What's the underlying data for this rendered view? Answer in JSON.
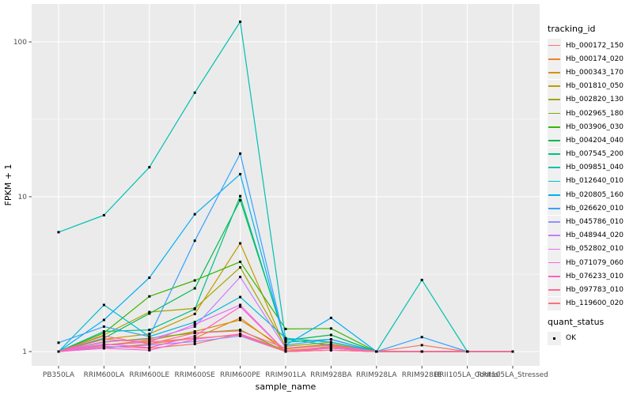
{
  "figure": {
    "y_axis_title": "FPKM + 1",
    "x_axis_title": "sample_name"
  },
  "legend": {
    "tracking_title": "tracking_id",
    "quant_title": "quant_status",
    "quant_ok_label": "OK",
    "quant_marker": "black-square"
  },
  "chart_data": {
    "type": "line",
    "title": "",
    "xlabel": "sample_name",
    "ylabel": "FPKM + 1",
    "y_scale": "log10",
    "ylim": [
      0.93,
      176
    ],
    "y_ticks": [
      1,
      10,
      100
    ],
    "y_minor_ticks": [
      3.1623,
      31.623
    ],
    "grid": "on",
    "legend_position": "right",
    "panel_bg": "#EBEBEB",
    "grid_color": "#FFFFFF",
    "point_marker": "black-square",
    "point_color": "#000000",
    "categories": [
      "PB350LA",
      "RRIM600LA",
      "RRIM600LE",
      "RRIM600SE",
      "RRIM600PE",
      "RRIM901LA",
      "RRIM928BA",
      "RRIM928LA",
      "RRIM928LE",
      "RRII105LA_Control",
      "RRII105LA_Stressed"
    ],
    "series": [
      {
        "name": "Hb_000172_150",
        "color": "#F8766D",
        "values": [
          1.0,
          1.08,
          1.05,
          1.12,
          1.3,
          1.02,
          1.06,
          1.0,
          1.1,
          1.0,
          1.0
        ]
      },
      {
        "name": "Hb_000174_020",
        "color": "#EA8331",
        "values": [
          1.0,
          1.05,
          1.12,
          1.22,
          1.65,
          1.0,
          1.08,
          1.0,
          1.0,
          1.0,
          1.0
        ]
      },
      {
        "name": "Hb_000343_170",
        "color": "#D89000",
        "values": [
          1.0,
          1.1,
          1.18,
          1.35,
          1.6,
          1.04,
          1.1,
          1.0,
          1.0,
          1.0,
          1.0
        ]
      },
      {
        "name": "Hb_001810_050",
        "color": "#C09B00",
        "values": [
          1.0,
          1.2,
          1.3,
          1.75,
          5.0,
          1.05,
          1.12,
          1.0,
          1.0,
          1.0,
          1.0
        ]
      },
      {
        "name": "Hb_002820_130",
        "color": "#A3A500",
        "values": [
          1.0,
          1.28,
          1.8,
          1.9,
          3.5,
          1.08,
          1.15,
          1.0,
          1.0,
          1.0,
          1.0
        ]
      },
      {
        "name": "Hb_002965_180",
        "color": "#7CAE00",
        "values": [
          1.0,
          1.15,
          1.22,
          1.32,
          1.38,
          1.0,
          1.05,
          1.0,
          1.0,
          1.0,
          1.0
        ]
      },
      {
        "name": "Hb_003906_030",
        "color": "#39B600",
        "values": [
          1.0,
          1.32,
          2.27,
          2.88,
          3.8,
          1.4,
          1.41,
          1.0,
          1.0,
          1.0,
          1.0
        ]
      },
      {
        "name": "Hb_004204_040",
        "color": "#00BB4E",
        "values": [
          1.0,
          1.22,
          1.76,
          2.56,
          9.5,
          1.18,
          1.28,
          1.0,
          1.0,
          1.0,
          1.0
        ]
      },
      {
        "name": "Hb_007545_200",
        "color": "#00C087",
        "values": [
          1.0,
          1.35,
          1.38,
          1.88,
          10.1,
          1.15,
          1.2,
          1.0,
          1.0,
          1.0,
          1.0
        ]
      },
      {
        "name": "Hb_009851_040",
        "color": "#00C0B2",
        "values": [
          5.9,
          7.6,
          15.5,
          47.0,
          135.0,
          1.2,
          1.1,
          1.0,
          2.9,
          1.0,
          1.0
        ]
      },
      {
        "name": "Hb_012640_010",
        "color": "#00BCD8",
        "values": [
          1.0,
          2.0,
          1.25,
          1.55,
          2.25,
          1.22,
          1.15,
          1.0,
          1.0,
          1.0,
          1.0
        ]
      },
      {
        "name": "Hb_020805_160",
        "color": "#00B0F6",
        "values": [
          1.0,
          1.6,
          3.0,
          7.7,
          14.0,
          1.1,
          1.65,
          1.0,
          1.0,
          1.0,
          1.0
        ]
      },
      {
        "name": "Hb_026620_010",
        "color": "#35A2FF",
        "values": [
          1.14,
          1.45,
          1.25,
          5.2,
          19.0,
          1.1,
          1.2,
          1.0,
          1.24,
          1.0,
          1.0
        ]
      },
      {
        "name": "Hb_045786_010",
        "color": "#9590FF",
        "values": [
          1.0,
          1.06,
          1.1,
          1.16,
          1.26,
          1.0,
          1.02,
          1.0,
          1.0,
          1.0,
          1.0
        ]
      },
      {
        "name": "Hb_048944_020",
        "color": "#C77CFF",
        "values": [
          1.0,
          1.16,
          1.2,
          1.45,
          3.03,
          1.05,
          1.1,
          1.0,
          1.0,
          1.0,
          1.0
        ]
      },
      {
        "name": "Hb_052802_010",
        "color": "#E76BF3",
        "values": [
          1.0,
          1.1,
          1.15,
          1.5,
          2.0,
          1.0,
          1.06,
          1.0,
          1.0,
          1.0,
          1.0
        ]
      },
      {
        "name": "Hb_071079_060",
        "color": "#FA62DB",
        "values": [
          1.0,
          1.05,
          1.02,
          1.2,
          1.3,
          1.0,
          1.02,
          1.0,
          1.0,
          1.0,
          1.0
        ]
      },
      {
        "name": "Hb_076233_010",
        "color": "#FF61C9",
        "values": [
          1.0,
          1.12,
          1.06,
          1.26,
          1.95,
          1.0,
          1.05,
          1.0,
          1.0,
          1.0,
          1.0
        ]
      },
      {
        "name": "Hb_097783_010",
        "color": "#FF6A98",
        "values": [
          1.0,
          1.26,
          1.12,
          1.32,
          1.36,
          1.05,
          1.1,
          1.0,
          1.0,
          1.0,
          1.0
        ]
      },
      {
        "name": "Hb_119600_020",
        "color": "#FC717F",
        "values": [
          1.0,
          1.2,
          1.15,
          1.22,
          1.28,
          1.0,
          1.02,
          1.0,
          1.0,
          1.0,
          1.0
        ]
      }
    ]
  }
}
